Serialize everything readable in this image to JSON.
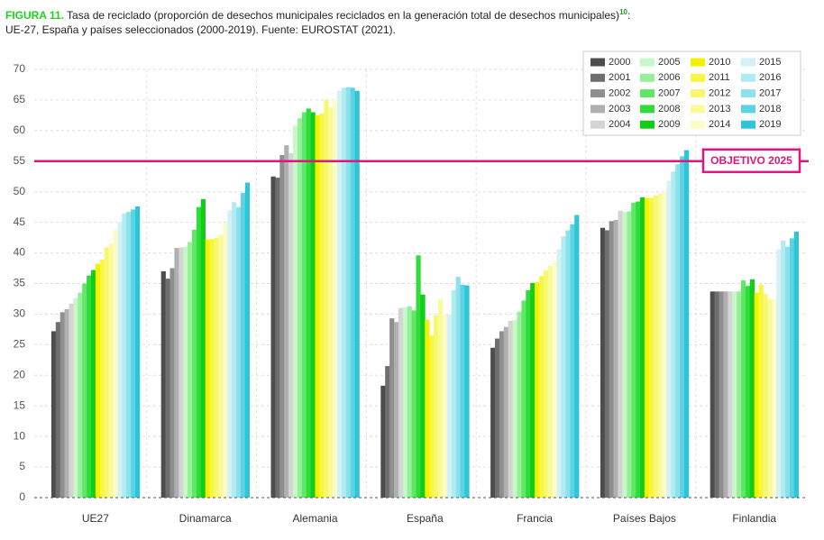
{
  "chart_data": {
    "type": "bar",
    "title_label": "FIGURA 11.",
    "title": "Tasa de reciclado (proporción de desechos municipales reciclados en la generación total de desechos municipales)",
    "footnote": "10",
    "title_suffix": ":",
    "subtitle": "UE-27, España y países seleccionados (2000-2019). Fuente: EUROSTAT (2021).",
    "categories": [
      "UE27",
      "Dinamarca",
      "Alemania",
      "España",
      "Francia",
      "Países Bajos",
      "Finlandia"
    ],
    "series": [
      {
        "name": "2000",
        "color": "#4d4d4d",
        "values": [
          27.2,
          37.0,
          52.5,
          18.3,
          24.5,
          44.1,
          33.7
        ]
      },
      {
        "name": "2001",
        "color": "#6e6e6e",
        "values": [
          28.7,
          35.8,
          52.3,
          21.5,
          26.0,
          43.7,
          33.7
        ]
      },
      {
        "name": "2002",
        "color": "#8f8f8f",
        "values": [
          30.3,
          37.5,
          56.0,
          29.3,
          27.2,
          45.2,
          33.7
        ]
      },
      {
        "name": "2003",
        "color": "#b0b0b0",
        "values": [
          30.8,
          40.8,
          57.6,
          28.7,
          27.9,
          45.4,
          33.7
        ]
      },
      {
        "name": "2004",
        "color": "#d4d4d4",
        "values": [
          31.7,
          40.9,
          56.3,
          31.0,
          28.9,
          46.9,
          33.7
        ]
      },
      {
        "name": "2005",
        "color": "#c8f7c8",
        "values": [
          32.6,
          41.0,
          60.8,
          31.1,
          29.0,
          46.7,
          33.7
        ]
      },
      {
        "name": "2006",
        "color": "#96f09a",
        "values": [
          33.5,
          41.8,
          62.0,
          31.3,
          30.4,
          46.8,
          33.7
        ]
      },
      {
        "name": "2007",
        "color": "#5ee865",
        "values": [
          35.0,
          43.8,
          63.0,
          30.6,
          32.2,
          48.2,
          35.5
        ]
      },
      {
        "name": "2008",
        "color": "#2fdc3a",
        "values": [
          36.3,
          47.5,
          63.6,
          39.6,
          33.9,
          48.4,
          34.6
        ]
      },
      {
        "name": "2009",
        "color": "#12cc18",
        "values": [
          37.2,
          48.8,
          63.0,
          33.2,
          35.1,
          49.1,
          35.7
        ]
      },
      {
        "name": "2010",
        "color": "#f2f200",
        "values": [
          38.2,
          42.2,
          62.5,
          29.1,
          35.2,
          49.0,
          33.5
        ]
      },
      {
        "name": "2011",
        "color": "#f7f742",
        "values": [
          38.9,
          42.3,
          62.8,
          26.5,
          36.2,
          49.0,
          34.8
        ]
      },
      {
        "name": "2012",
        "color": "#f8f870",
        "values": [
          40.9,
          42.5,
          65.0,
          29.8,
          37.2,
          49.4,
          33.3
        ]
      },
      {
        "name": "2013",
        "color": "#fafa9a",
        "values": [
          41.5,
          43.0,
          63.8,
          32.4,
          37.9,
          49.7,
          32.5
        ]
      },
      {
        "name": "2014",
        "color": "#fcfcc8",
        "values": [
          43.8,
          44.9,
          65.0,
          30.0,
          38.7,
          50.2,
          32.5
        ]
      },
      {
        "name": "2015",
        "color": "#d2f2f7",
        "values": [
          45.0,
          47.0,
          66.5,
          29.9,
          40.6,
          51.8,
          40.6
        ]
      },
      {
        "name": "2016",
        "color": "#b0ebf2",
        "values": [
          46.4,
          48.3,
          67.0,
          33.9,
          42.7,
          53.3,
          42.0
        ]
      },
      {
        "name": "2017",
        "color": "#8ce2ec",
        "values": [
          46.7,
          47.5,
          67.1,
          36.1,
          43.7,
          54.5,
          41.0
        ]
      },
      {
        "name": "2018",
        "color": "#5cd3e3",
        "values": [
          47.1,
          49.8,
          67.0,
          34.8,
          44.7,
          55.8,
          42.4
        ]
      },
      {
        "name": "2019",
        "color": "#2fc5d9",
        "values": [
          47.6,
          51.5,
          66.5,
          34.7,
          46.2,
          56.8,
          43.5
        ]
      }
    ],
    "ylim": [
      0,
      70
    ],
    "yticks": [
      0,
      5,
      10,
      15,
      20,
      25,
      30,
      35,
      40,
      45,
      50,
      55,
      60,
      65,
      70
    ],
    "grid": true,
    "target": {
      "value": 55,
      "label": "OBJETIVO 2025",
      "color": "#e0157f"
    },
    "legend": "upper right"
  }
}
